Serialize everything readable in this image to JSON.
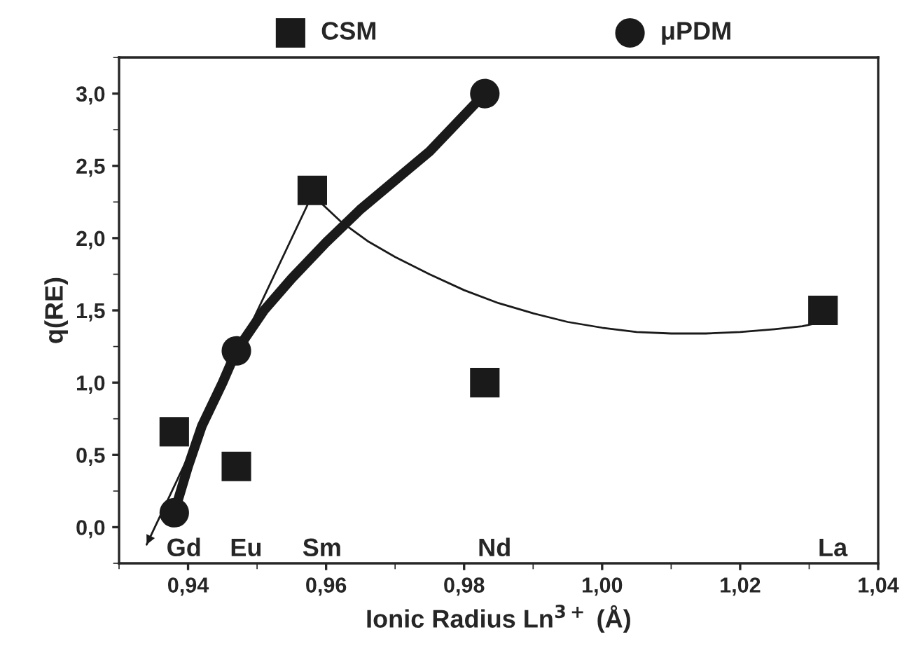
{
  "chart_data": {
    "type": "scatter",
    "xlabel": "Ionic Radius Ln$^{3+}$ (Å)",
    "ylabel": "q(RE)",
    "xlim": [
      0.93,
      1.04
    ],
    "ylim": [
      -0.25,
      3.25
    ],
    "xticks": [
      {
        "value": 0.94,
        "label": "0,94"
      },
      {
        "value": 0.96,
        "label": "0,96"
      },
      {
        "value": 0.98,
        "label": "0,98"
      },
      {
        "value": 1.0,
        "label": "1,00"
      },
      {
        "value": 1.02,
        "label": "1,02"
      },
      {
        "value": 1.04,
        "label": "1,04"
      }
    ],
    "yticks": [
      {
        "value": 0,
        "label": "0,0"
      },
      {
        "value": 0.5,
        "label": "0,5"
      },
      {
        "value": 1.0,
        "label": "1,0"
      },
      {
        "value": 1.5,
        "label": "1,5"
      },
      {
        "value": 2.0,
        "label": "2,0"
      },
      {
        "value": 2.5,
        "label": "2,5"
      },
      {
        "value": 3.0,
        "label": "3,0"
      }
    ],
    "grid": false,
    "legend": "top",
    "series": [
      {
        "name": "CSM",
        "marker": "square",
        "color": "#1a1a1a",
        "x": [
          0.938,
          0.947,
          0.958,
          0.983,
          1.032
        ],
        "values": [
          0.66,
          0.42,
          2.33,
          1.0,
          1.5
        ]
      },
      {
        "name": "μPDM",
        "marker": "circle",
        "color": "#1a1a1a",
        "x": [
          0.938,
          0.947,
          0.983
        ],
        "values": [
          0.1,
          1.22,
          3.0
        ]
      },
      {
        "type": "line",
        "color": "#1a1a1a",
        "line_style": "solid",
        "x": [
          0.938,
          0.94,
          0.942,
          0.945,
          0.947,
          0.951,
          0.955,
          0.96,
          0.965,
          0.97,
          0.975,
          0.979,
          0.983
        ],
        "values": [
          0.1,
          0.42,
          0.7,
          1.0,
          1.22,
          1.5,
          1.72,
          1.97,
          2.2,
          2.4,
          2.6,
          2.8,
          3.0
        ]
      },
      {
        "type": "line",
        "color": "#1a1a1a",
        "line_style": "solid",
        "x": [
          0.934,
          0.958,
          0.962,
          0.966,
          0.97,
          0.975,
          0.98,
          0.985,
          0.99,
          0.995,
          1.0,
          1.005,
          1.01,
          1.015,
          1.02,
          1.025,
          1.029,
          1.032
        ],
        "values": [
          -0.12,
          2.3,
          2.12,
          1.98,
          1.87,
          1.75,
          1.64,
          1.55,
          1.48,
          1.42,
          1.38,
          1.35,
          1.34,
          1.34,
          1.35,
          1.37,
          1.39,
          1.42
        ]
      }
    ],
    "annotations": [
      "Gd",
      "Eu",
      "Sm",
      "Nd",
      "La"
    ]
  }
}
